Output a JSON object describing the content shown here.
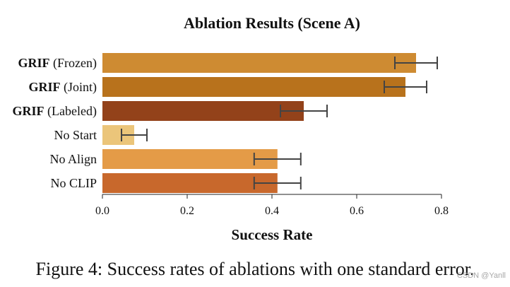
{
  "chart_data": {
    "type": "bar",
    "orientation": "horizontal",
    "title": "Ablation Results (Scene A)",
    "xlabel": "Success Rate",
    "ylabel": "",
    "xlim": [
      0.0,
      0.8
    ],
    "xticks": [
      "0.0",
      "0.2",
      "0.4",
      "0.6",
      "0.8"
    ],
    "grid": false,
    "categories": [
      {
        "bold": "GRIF",
        "rest": " (Frozen)"
      },
      {
        "bold": "GRIF",
        "rest": " (Joint)"
      },
      {
        "bold": "GRIF",
        "rest": " (Labeled)"
      },
      {
        "bold": "",
        "rest": "No Start"
      },
      {
        "bold": "",
        "rest": "No Align"
      },
      {
        "bold": "",
        "rest": "No CLIP"
      }
    ],
    "values": [
      0.74,
      0.715,
      0.475,
      0.075,
      0.413,
      0.413
    ],
    "errors": [
      0.05,
      0.05,
      0.055,
      0.03,
      0.055,
      0.055
    ],
    "colors": [
      "#ce8b32",
      "#b8721c",
      "#93421a",
      "#ebc57a",
      "#e49b47",
      "#c8682c"
    ]
  },
  "caption": "Figure 4: Success rates of ablations with one standard error.",
  "watermark": "CSDN @Yanll"
}
